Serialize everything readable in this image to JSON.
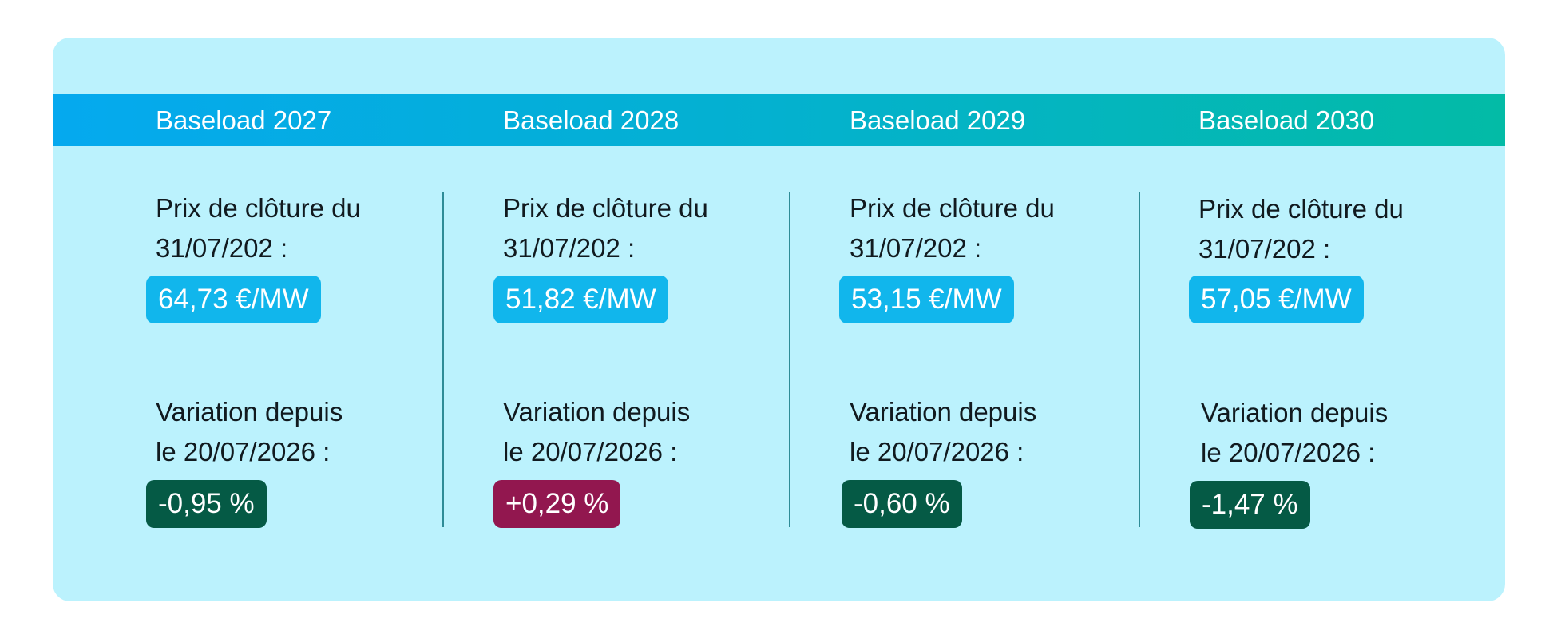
{
  "columns": [
    {
      "title": "Baseload 2027",
      "price_label_line1": "Prix de clôture du",
      "price_label_line2": "31/07/202 :",
      "price": "64,73 €/MW",
      "variation_label_line1": "Variation depuis",
      "variation_label_line2": "le 20/07/2026 :",
      "variation": "-0,95 %",
      "variation_trend": "negative"
    },
    {
      "title": "Baseload 2028",
      "price_label_line1": "Prix de clôture du",
      "price_label_line2": "31/07/202 :",
      "price": "51,82 €/MW",
      "variation_label_line1": "Variation depuis",
      "variation_label_line2": "le 20/07/2026 :",
      "variation": "+0,29 %",
      "variation_trend": "positive"
    },
    {
      "title": "Baseload 2029",
      "price_label_line1": "Prix de clôture du",
      "price_label_line2": "31/07/202 :",
      "price": "53,15 €/MW",
      "variation_label_line1": "Variation depuis",
      "variation_label_line2": "le 20/07/2026 :",
      "variation": "-0,60 %",
      "variation_trend": "negative"
    },
    {
      "title": "Baseload 2030",
      "price_label_line1": "Prix de clôture du",
      "price_label_line2": "31/07/202 :",
      "price": "57,05 €/MW",
      "variation_label_line1": "Variation depuis",
      "variation_label_line2": "le 20/07/2026 :",
      "variation": "-1,47 %",
      "variation_trend": "negative"
    }
  ],
  "colors": {
    "card_background": "#bbf2fd",
    "header_gradient_start": "#05a9ef",
    "header_gradient_end": "#03bba6",
    "price_pill": "#11b6ec",
    "negative_pill": "#055a45",
    "positive_pill": "#92174f",
    "divider": "#2e8c97"
  }
}
